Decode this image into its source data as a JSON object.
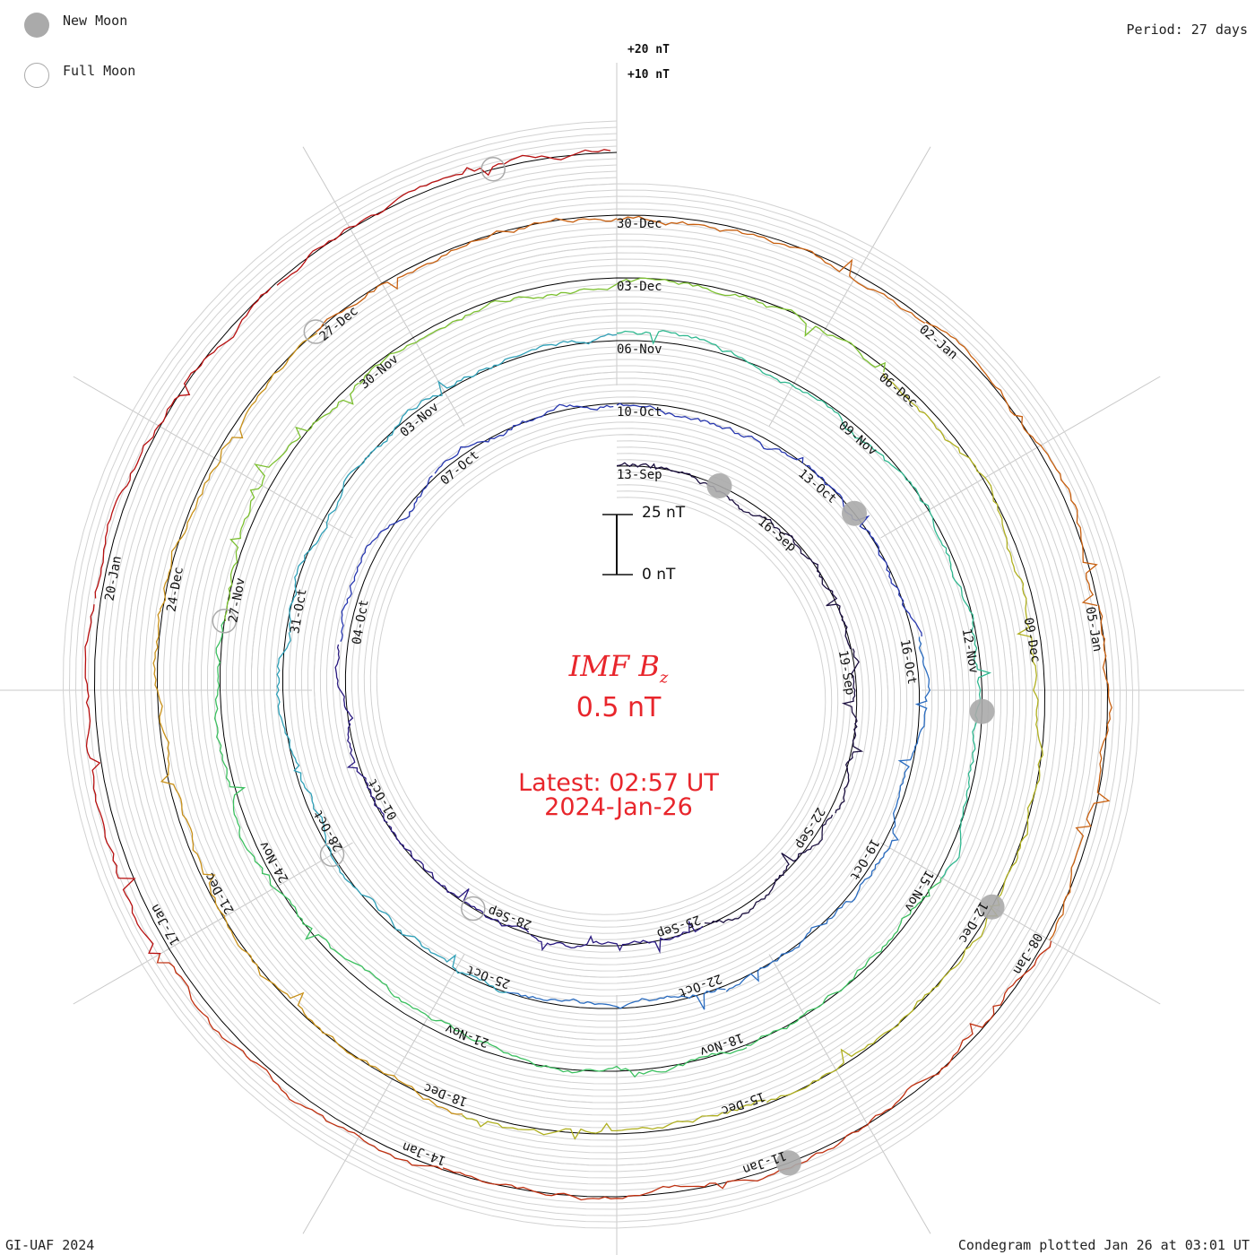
{
  "legend": {
    "new_moon_label": "New Moon",
    "full_moon_label": "Full Moon",
    "new_moon_color": "#aaaaaa",
    "full_moon_color": "#aaaaaa"
  },
  "period_label": "Period: 27 days",
  "footer": {
    "credit": "GI-UAF 2024",
    "plotted": "Condegram plotted Jan 26 at 03:01 UT"
  },
  "center": {
    "title_main": "IMF B",
    "title_sub": "z",
    "value": "0.5 nT",
    "latest": "Latest: 02:57 UT",
    "date": "2024-Jan-26",
    "text_color": "#e8262c"
  },
  "scale": {
    "top_label": "25 nT",
    "bottom_label": "0 nT"
  },
  "reference_labels": [
    "+20 nT",
    "+10 nT"
  ],
  "chart_data": {
    "type": "condegram spiral",
    "title": "IMF Bz",
    "units": "nT",
    "period_days": 27,
    "start_date": "2023-09-13",
    "latest_date": "2024-01-26",
    "scale_nT": [
      0,
      25
    ],
    "date_labels": [
      "13-Sep",
      "16-Sep",
      "19-Sep",
      "22-Sep",
      "25-Sep",
      "28-Sep",
      "01-Oct",
      "04-Oct",
      "07-Oct",
      "10-Oct",
      "13-Oct",
      "16-Oct",
      "19-Oct",
      "22-Oct",
      "25-Oct",
      "28-Oct",
      "31-Oct",
      "03-Nov",
      "06-Nov",
      "09-Nov",
      "12-Nov",
      "15-Nov",
      "18-Nov",
      "21-Nov",
      "24-Nov",
      "27-Nov",
      "30-Nov",
      "03-Dec",
      "06-Dec",
      "09-Dec",
      "12-Dec",
      "15-Dec",
      "18-Dec",
      "21-Dec",
      "24-Dec",
      "27-Dec",
      "30-Dec",
      "02-Jan",
      "05-Jan",
      "08-Jan",
      "11-Jan",
      "14-Jan",
      "17-Jan",
      "20-Jan"
    ],
    "new_moons": [
      "2023-09-15",
      "2023-10-14",
      "2023-11-13",
      "2023-12-12",
      "2024-01-11"
    ],
    "full_moons": [
      "2023-09-29",
      "2023-10-28",
      "2023-11-27",
      "2023-12-27",
      "2024-01-25"
    ],
    "color_progression": [
      "#1c1040",
      "#2a1a80",
      "#2838b0",
      "#2a6cc0",
      "#2fa0b8",
      "#30b890",
      "#3cc060",
      "#7cc030",
      "#b0b020",
      "#c89018",
      "#c86010",
      "#c03010",
      "#b81010"
    ]
  }
}
